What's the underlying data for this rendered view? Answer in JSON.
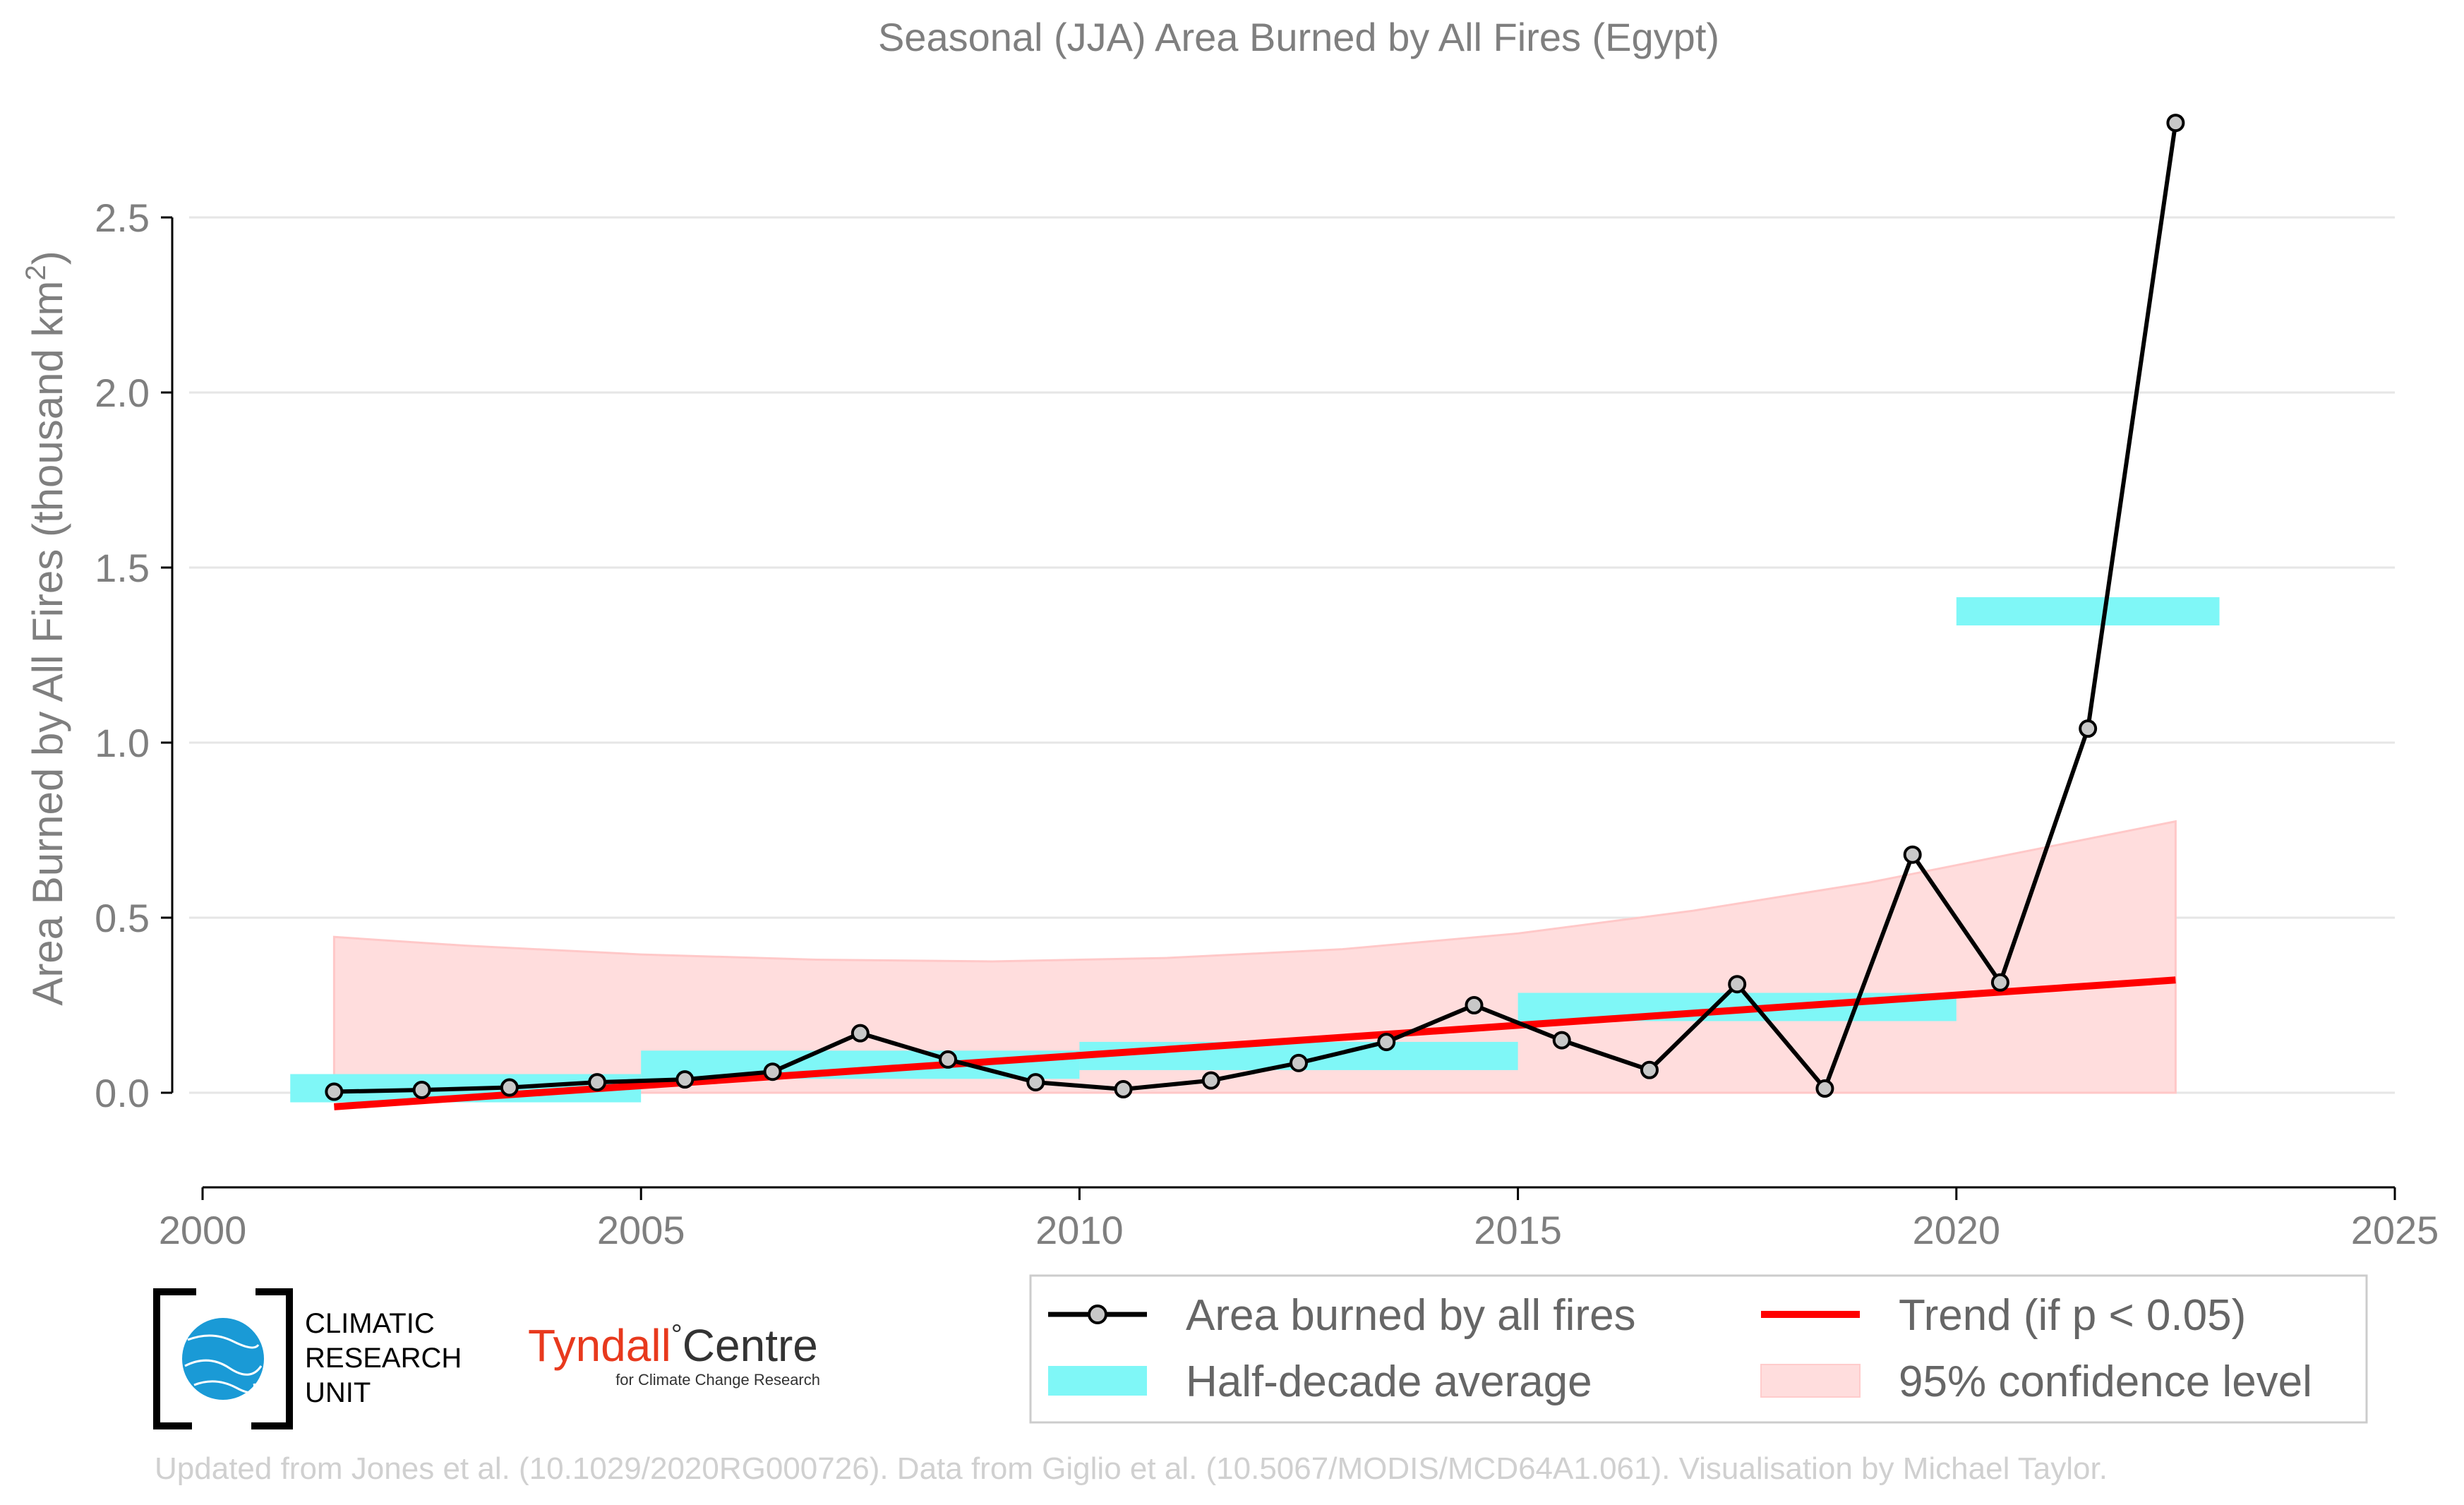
{
  "chart_data": {
    "type": "line",
    "title": "Seasonal (JJA) Area Burned by All Fires (Egypt)",
    "xlabel": "",
    "ylabel": "Area Burned by All Fires (thousand km²)",
    "ylabel_main": "Area Burned by All Fires (thousand km",
    "ylabel_sup": "2",
    "ylabel_close": ")",
    "xlim": [
      2000,
      2025
    ],
    "ylim": [
      -0.27,
      2.9
    ],
    "x_ticks": [
      2000,
      2005,
      2010,
      2015,
      2020,
      2025
    ],
    "y_ticks": [
      0.0,
      0.5,
      1.0,
      1.5,
      2.0,
      2.5
    ],
    "y_tick_labels": [
      "0.0",
      "0.5",
      "1.0",
      "1.5",
      "2.0",
      "2.5"
    ],
    "grid": "horizontal",
    "legend_position": "bottom-right",
    "series": [
      {
        "name": "Area burned by all fires",
        "color": "#000000",
        "x": [
          2001.5,
          2002.5,
          2003.5,
          2004.5,
          2005.5,
          2006.5,
          2007.5,
          2008.5,
          2009.5,
          2010.5,
          2011.5,
          2012.5,
          2013.5,
          2014.5,
          2015.5,
          2016.5,
          2017.5,
          2018.5,
          2019.5,
          2020.5,
          2021.5,
          2022.5
        ],
        "values": [
          0.003,
          0.008,
          0.015,
          0.03,
          0.038,
          0.06,
          0.17,
          0.095,
          0.03,
          0.01,
          0.035,
          0.085,
          0.145,
          0.25,
          0.15,
          0.065,
          0.31,
          0.012,
          0.68,
          0.315,
          1.04,
          2.77
        ]
      },
      {
        "name": "Half-decade average",
        "color": "#7ff7f7",
        "bars": [
          {
            "x0": 2001,
            "x1": 2005,
            "value": 0.013
          },
          {
            "x0": 2005,
            "x1": 2010,
            "value": 0.08
          },
          {
            "x0": 2010,
            "x1": 2015,
            "value": 0.105
          },
          {
            "x0": 2015,
            "x1": 2020,
            "value": 0.245
          },
          {
            "x0": 2020,
            "x1": 2023,
            "value": 1.375
          }
        ]
      },
      {
        "name": "Trend (if p < 0.05)",
        "color": "#ff0000",
        "x": [
          2001.5,
          2022.5
        ],
        "values": [
          -0.04,
          0.322
        ]
      },
      {
        "name": "95% confidence level",
        "color": "#ffdddd",
        "x": [
          2001.5,
          2003.0,
          2005.0,
          2007.0,
          2009.0,
          2011.0,
          2013.0,
          2015.0,
          2017.0,
          2019.0,
          2021.0,
          2022.5
        ],
        "lower": [
          0,
          0,
          0,
          0,
          0,
          0,
          0,
          0,
          0,
          0,
          0,
          0
        ],
        "upper": [
          0.445,
          0.42,
          0.395,
          0.38,
          0.375,
          0.385,
          0.41,
          0.455,
          0.52,
          0.6,
          0.7,
          0.775
        ]
      }
    ]
  },
  "legend": {
    "items": [
      {
        "label": "Area burned by all fires"
      },
      {
        "label": "Trend (if p < 0.05)"
      },
      {
        "label": "Half-decade average"
      },
      {
        "label": "95% confidence level"
      }
    ]
  },
  "logos": {
    "cru_line1": "CLIMATIC",
    "cru_line2": "RESEARCH",
    "cru_line3": "UNIT",
    "tyndall_name": "Tyndall",
    "tyndall_degree": "°",
    "tyndall_centre": "Centre",
    "tyndall_sub": "for Climate Change Research"
  },
  "credit": "Updated from Jones et al. (10.1029/2020RG000726). Data from Giglio et al. (10.5067/MODIS/MCD64A1.061). Visualisation by Michael Taylor.",
  "colors": {
    "axis_text": "#7f7f7f",
    "grid": "#e6e6e6",
    "line": "#000000",
    "marker_fill": "#c8c8c8",
    "trend": "#ff0000",
    "half_decade": "#7ff7f7",
    "confidence": "#ffdddd",
    "cru_blue": "#1a9ad6"
  }
}
